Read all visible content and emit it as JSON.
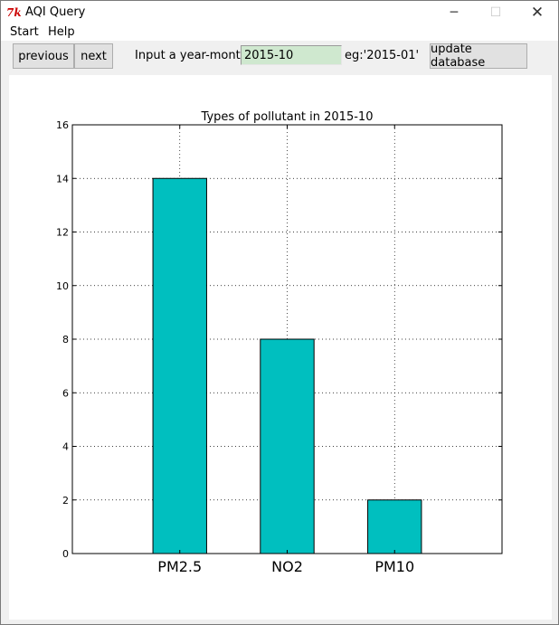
{
  "window": {
    "title": "AQI Query",
    "app_icon_text": "7k",
    "controls": {
      "minimize": "─",
      "maximize": "☐",
      "close": "✕"
    }
  },
  "menu": {
    "items": [
      "Start",
      "Help"
    ]
  },
  "toolbar": {
    "previous_label": "previous",
    "next_label": "next",
    "input_label": "Input a year-month:",
    "input_value": "2015-10",
    "hint": "eg:'2015-01'",
    "update_label": "update database"
  },
  "chart_data": {
    "type": "bar",
    "title": "Types of pollutant in 2015-10",
    "categories": [
      "PM2.5",
      "NO2",
      "PM10"
    ],
    "values": [
      14,
      8,
      2
    ],
    "ylim": [
      0,
      16
    ],
    "yticks": [
      0,
      2,
      4,
      6,
      8,
      10,
      12,
      14,
      16
    ],
    "xlim": [
      -1,
      3
    ],
    "bar_color": "#00bfbf",
    "grid": true,
    "xlabel": "",
    "ylabel": ""
  }
}
